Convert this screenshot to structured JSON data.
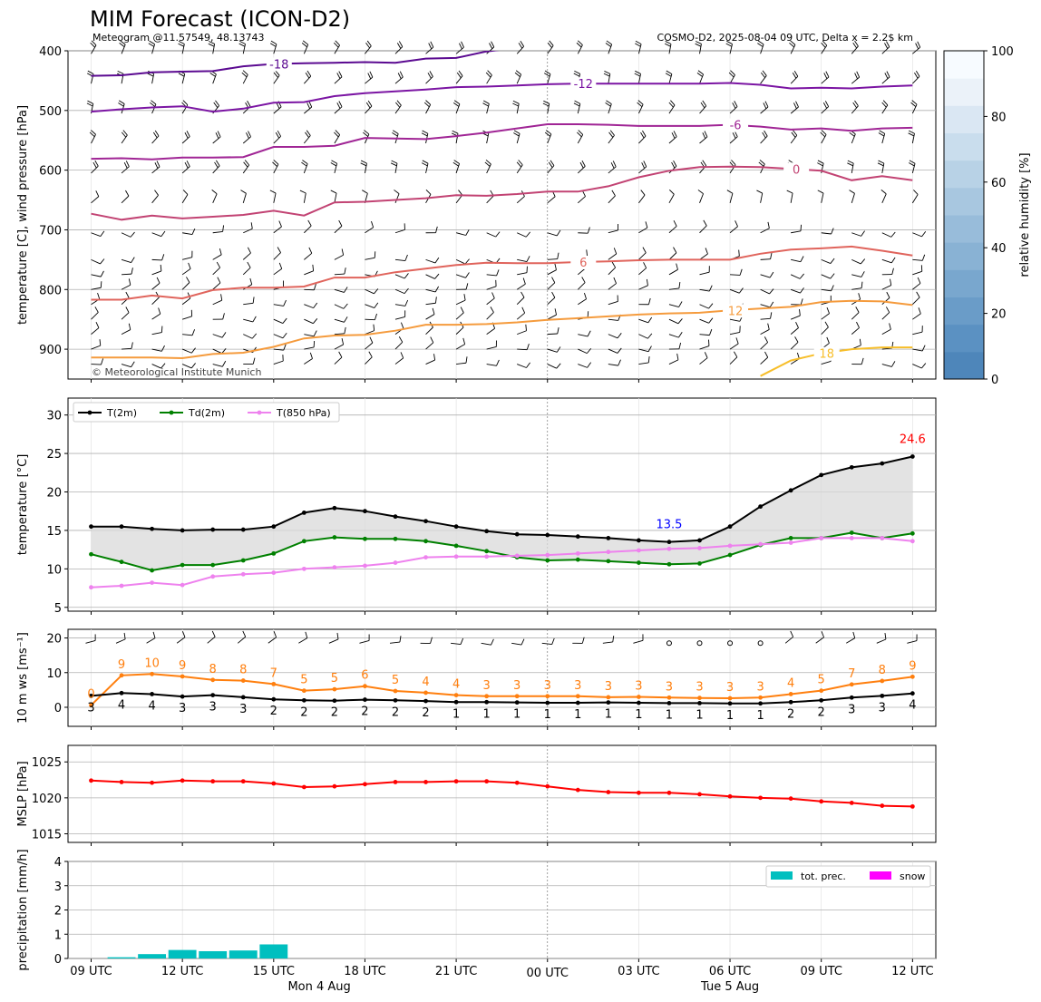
{
  "header": {
    "title": "MIM Forecast (ICON-D2)",
    "subtitle_left": "Meteogram @11.57549, 48.13743",
    "subtitle_right": "COSMO-D2, 2025-08-04 09 UTC, Delta x = 2.2$ km",
    "copyright": "© Meteorological Institute Munich"
  },
  "time_axis": {
    "tick_labels": [
      "09 UTC",
      "12 UTC",
      "15 UTC",
      "18 UTC",
      "21 UTC",
      "00 UTC",
      "03 UTC",
      "06 UTC",
      "09 UTC",
      "12 UTC"
    ],
    "day_labels": [
      "Mon 4 Aug",
      "Tue 5 Aug"
    ]
  },
  "colors": {
    "t2m": "#000000",
    "td2m": "#008000",
    "t850": "#ee82ee",
    "mslp": "#ff0000",
    "ws_gust": "#ff7f0e",
    "ws_mean": "#000000",
    "precip": "#00bfbf",
    "snow": "#ff00ff",
    "annot_max": "#ff0000",
    "annot_min": "#0000ff"
  },
  "chart_data": [
    {
      "type": "line",
      "panel": "upper-air",
      "ylabel": "temperature [C], wind pressure [hPa]",
      "y_ticks": [
        "400",
        "500",
        "600",
        "700",
        "800",
        "900"
      ],
      "ylim": [
        950,
        400
      ],
      "x_hours": [
        0,
        1,
        2,
        3,
        4,
        5,
        6,
        7,
        8,
        9,
        10,
        11,
        12,
        13,
        14,
        15,
        16,
        17,
        18,
        19,
        20,
        21,
        22,
        23,
        24,
        25,
        26,
        27
      ],
      "isotherms": [
        {
          "label": "-18",
          "color": "#5b0a91",
          "levels": [
            442,
            441,
            436,
            435,
            434,
            426,
            422,
            421,
            420,
            419,
            420,
            413,
            412,
            401,
            395,
            397,
            398,
            397,
            396,
            396,
            396,
            396,
            396,
            396,
            396,
            396,
            396,
            396
          ]
        },
        {
          "label": "-12",
          "color": "#7b15a3",
          "levels": [
            502,
            498,
            495,
            493,
            502,
            497,
            487,
            486,
            476,
            471,
            468,
            465,
            461,
            460,
            458,
            456,
            455,
            455,
            455,
            455,
            455,
            454,
            457,
            463,
            462,
            463,
            460,
            458
          ]
        },
        {
          "label": "-6",
          "color": "#a02595",
          "levels": [
            581,
            580,
            582,
            579,
            579,
            578,
            561,
            561,
            559,
            546,
            547,
            548,
            543,
            537,
            530,
            523,
            523,
            524,
            526,
            526,
            526,
            524,
            527,
            532,
            530,
            534,
            530,
            529
          ]
        },
        {
          "label": "0",
          "color": "#c24373",
          "levels": [
            673,
            683,
            676,
            681,
            678,
            675,
            668,
            676,
            654,
            653,
            650,
            647,
            642,
            643,
            640,
            636,
            636,
            627,
            612,
            601,
            595,
            594,
            595,
            598,
            601,
            617,
            610,
            617
          ]
        },
        {
          "label": "6",
          "color": "#e0645c",
          "levels": [
            817,
            817,
            810,
            815,
            801,
            797,
            797,
            795,
            780,
            780,
            771,
            765,
            759,
            755,
            756,
            756,
            754,
            753,
            751,
            750,
            750,
            750,
            740,
            733,
            731,
            728,
            735,
            743
          ]
        },
        {
          "label": "12",
          "color": "#f59b3d",
          "levels": [
            914,
            914,
            914,
            915,
            908,
            906,
            896,
            882,
            877,
            876,
            869,
            859,
            859,
            858,
            855,
            851,
            848,
            845,
            842,
            840,
            839,
            835,
            832,
            829,
            821,
            819,
            820,
            826
          ]
        },
        {
          "label": "18",
          "color": "#f7be2a",
          "levels": [
            null,
            null,
            null,
            null,
            null,
            null,
            null,
            null,
            null,
            null,
            null,
            null,
            null,
            null,
            null,
            null,
            null,
            null,
            null,
            null,
            null,
            null,
            945,
            919,
            907,
            900,
            897,
            897
          ]
        }
      ],
      "colorbar": {
        "label": "relative humidity [%]",
        "ticks": [
          "0",
          "20",
          "40",
          "60",
          "80",
          "100"
        ]
      }
    },
    {
      "type": "line",
      "panel": "temperature",
      "ylabel": "temperature [$^\\circ$C]",
      "y_ticks": [
        "5",
        "10",
        "15",
        "20",
        "25",
        "30"
      ],
      "ylim": [
        4.5,
        32.2
      ],
      "x_hours": [
        0,
        1,
        2,
        3,
        4,
        5,
        6,
        7,
        8,
        9,
        10,
        11,
        12,
        13,
        14,
        15,
        16,
        17,
        18,
        19,
        20,
        21,
        22,
        23,
        24,
        25,
        26,
        27
      ],
      "series": [
        {
          "name": "T(2m)",
          "values": [
            15.5,
            15.5,
            15.2,
            15.0,
            15.1,
            15.1,
            15.5,
            17.3,
            17.9,
            17.5,
            16.8,
            16.2,
            15.5,
            14.9,
            14.5,
            14.4,
            14.2,
            14.0,
            13.7,
            13.5,
            13.7,
            15.5,
            18.1,
            20.2,
            22.2,
            23.2,
            23.7,
            24.6
          ]
        },
        {
          "name": "Td(2m)",
          "values": [
            11.9,
            10.9,
            9.8,
            10.5,
            10.5,
            11.1,
            12.0,
            13.6,
            14.1,
            13.9,
            13.9,
            13.6,
            13.0,
            12.3,
            11.5,
            11.1,
            11.2,
            11.0,
            10.8,
            10.6,
            10.7,
            11.8,
            13.1,
            14.0,
            14.0,
            14.7,
            14.0,
            14.6
          ]
        },
        {
          "name": "T(850 hPa)",
          "values": [
            7.6,
            7.8,
            8.2,
            7.9,
            9.0,
            9.3,
            9.5,
            10.0,
            10.2,
            10.4,
            10.8,
            11.5,
            11.6,
            11.6,
            11.7,
            11.8,
            12.0,
            12.2,
            12.4,
            12.6,
            12.7,
            13.0,
            13.2,
            13.4,
            14.0,
            14.0,
            14.0,
            13.6
          ]
        }
      ],
      "annotations": {
        "max": "24.6",
        "min": "13.5"
      }
    },
    {
      "type": "line",
      "panel": "wind",
      "ylabel": "10 m ws [ms$^{-1}$]",
      "y_ticks": [
        "0",
        "10",
        "20"
      ],
      "ylim": [
        -5.5,
        22.5
      ],
      "x_hours": [
        0,
        1,
        2,
        3,
        4,
        5,
        6,
        7,
        8,
        9,
        10,
        11,
        12,
        13,
        14,
        15,
        16,
        17,
        18,
        19,
        20,
        21,
        22,
        23,
        24,
        25,
        26,
        27
      ],
      "series": [
        {
          "values": [
            0.6,
            9.2,
            9.6,
            8.9,
            7.9,
            7.7,
            6.7,
            4.8,
            5.2,
            6.1,
            4.7,
            4.2,
            3.5,
            3.2,
            3.2,
            3.2,
            3.2,
            2.9,
            3.0,
            2.8,
            2.7,
            2.6,
            2.8,
            3.8,
            4.8,
            6.6,
            7.6,
            8.8
          ]
        },
        {
          "values": [
            3.3,
            4.1,
            3.8,
            3.1,
            3.5,
            2.9,
            2.3,
            2.0,
            1.9,
            2.2,
            2.0,
            1.8,
            1.5,
            1.5,
            1.4,
            1.3,
            1.3,
            1.4,
            1.3,
            1.2,
            1.2,
            1.1,
            1.1,
            1.5,
            2.0,
            2.8,
            3.3,
            4.0
          ]
        }
      ],
      "gust_labels": [
        "0",
        "9",
        "10",
        "9",
        "8",
        "8",
        "7",
        "5",
        "5",
        "6",
        "5",
        "4",
        "4",
        "3",
        "3",
        "3",
        "3",
        "3",
        "3",
        "3",
        "3",
        "3",
        "3",
        "4",
        "5",
        "7",
        "8",
        "9"
      ],
      "mean_labels": [
        "3",
        "4",
        "4",
        "3",
        "3",
        "3",
        "2",
        "2",
        "2",
        "2",
        "2",
        "2",
        "1",
        "1",
        "1",
        "1",
        "1",
        "1",
        "1",
        "1",
        "1",
        "1",
        "1",
        "2",
        "2",
        "3",
        "3",
        "4"
      ]
    },
    {
      "type": "line",
      "panel": "mslp",
      "ylabel": "MSLP [hPa]",
      "y_ticks": [
        "1015",
        "1020",
        "1025"
      ],
      "ylim": [
        1013.8,
        1027.3
      ],
      "x_hours": [
        0,
        1,
        2,
        3,
        4,
        5,
        6,
        7,
        8,
        9,
        10,
        11,
        12,
        13,
        14,
        15,
        16,
        17,
        18,
        19,
        20,
        21,
        22,
        23,
        24,
        25,
        26,
        27
      ],
      "series": [
        {
          "name": "MSLP",
          "values": [
            1022.4,
            1022.2,
            1022.1,
            1022.4,
            1022.3,
            1022.3,
            1022.0,
            1021.5,
            1021.6,
            1021.9,
            1022.2,
            1022.2,
            1022.3,
            1022.3,
            1022.1,
            1021.6,
            1021.1,
            1020.8,
            1020.7,
            1020.7,
            1020.5,
            1020.2,
            1020.0,
            1019.9,
            1019.5,
            1019.3,
            1018.9,
            1018.8
          ]
        }
      ]
    },
    {
      "type": "bar",
      "panel": "precipitation",
      "ylabel": "precipitation [mm/h]",
      "y_ticks": [
        "0",
        "1",
        "2",
        "3",
        "4"
      ],
      "ylim": [
        0,
        4
      ],
      "x_hours": [
        1,
        2,
        3,
        4,
        5,
        6
      ],
      "series": [
        {
          "name": "tot. prec.",
          "values": [
            0.05,
            0.18,
            0.35,
            0.3,
            0.33,
            0.58
          ]
        },
        {
          "name": "snow",
          "values": [
            0,
            0,
            0,
            0,
            0,
            0
          ]
        }
      ]
    }
  ]
}
